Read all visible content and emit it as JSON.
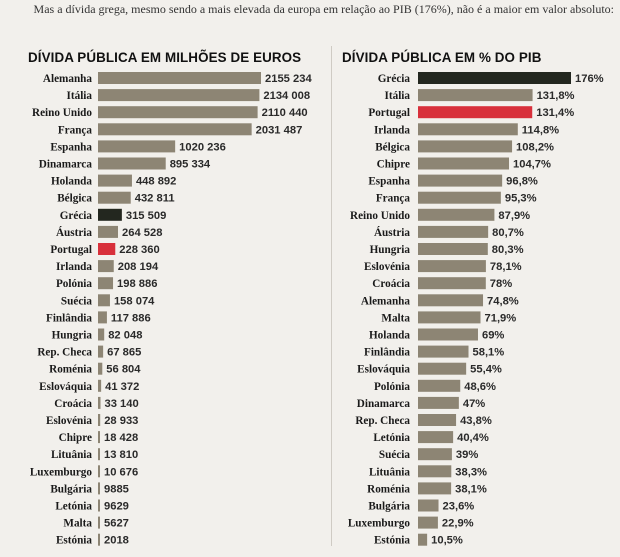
{
  "caption": "Mas a dívida grega, mesmo sendo a mais elevada da europa em relação ao PIB (176%), não é a maior em valor absoluto:",
  "colors": {
    "bar": "#8d8574",
    "greece": "#23271f",
    "portugal": "#d8303b",
    "highlight_text_greece": "#111111",
    "highlight_text_portugal": "#c0202b"
  },
  "chart_data": [
    {
      "type": "bar",
      "orientation": "horizontal",
      "title": "DÍVIDA PÚBLICA EM MILHÕES DE EUROS",
      "categories": [
        "Alemanha",
        "Itália",
        "Reino Unido",
        "França",
        "Espanha",
        "Dinamarca",
        "Holanda",
        "Bélgica",
        "Grécia",
        "Áustria",
        "Portugal",
        "Irlanda",
        "Polónia",
        "Suécia",
        "Finlândia",
        "Hungria",
        "Rep. Checa",
        "Roménia",
        "Eslováquia",
        "Croácia",
        "Eslovénia",
        "Chipre",
        "Lituânia",
        "Luxemburgo",
        "Bulgária",
        "Letónia",
        "Malta",
        "Estónia"
      ],
      "values": [
        2155234,
        2134008,
        2110440,
        2031487,
        1020236,
        895334,
        448892,
        432811,
        315509,
        264528,
        228360,
        208194,
        198886,
        158074,
        117886,
        82048,
        67865,
        56804,
        41372,
        33140,
        28933,
        18428,
        13810,
        10676,
        9885,
        9629,
        5627,
        2018
      ],
      "labels": [
        "2155 234",
        "2134 008",
        "2110 440",
        "2031 487",
        "1020 236",
        "895 334",
        "448 892",
        "432 811",
        "315 509",
        "264 528",
        "228 360",
        "208 194",
        "198 886",
        "158 074",
        "117 886",
        "82 048",
        "67 865",
        "56 804",
        "41 372",
        "33 140",
        "28 933",
        "18 428",
        "13 810",
        "10 676",
        "9885",
        "9629",
        "5627",
        "2018"
      ],
      "highlights": {
        "Grécia": "greece",
        "Portugal": "portugal"
      },
      "xlim": [
        0,
        2155234
      ]
    },
    {
      "type": "bar",
      "orientation": "horizontal",
      "title": "DÍVIDA PÚBLICA EM % DO PIB",
      "categories": [
        "Grécia",
        "Itália",
        "Portugal",
        "Irlanda",
        "Bélgica",
        "Chipre",
        "Espanha",
        "França",
        "Reino Unido",
        "Áustria",
        "Hungria",
        "Eslovénia",
        "Croácia",
        "Alemanha",
        "Malta",
        "Holanda",
        "Finlândia",
        "Eslováquia",
        "Polónia",
        "Dinamarca",
        "Rep. Checa",
        "Letónia",
        "Suécia",
        "Lituânia",
        "Roménia",
        "Bulgária",
        "Luxemburgo",
        "Estónia"
      ],
      "values": [
        176,
        131.8,
        131.4,
        114.8,
        108.2,
        104.7,
        96.8,
        95.3,
        87.9,
        80.7,
        80.3,
        78.1,
        78,
        74.8,
        71.9,
        69,
        58.1,
        55.4,
        48.6,
        47,
        43.8,
        40.4,
        39,
        38.3,
        38.1,
        23.6,
        22.9,
        10.5
      ],
      "labels": [
        "176%",
        "131,8%",
        "131,4%",
        "114,8%",
        "108,2%",
        "104,7%",
        "96,8%",
        "95,3%",
        "87,9%",
        "80,7%",
        "80,3%",
        "78,1%",
        "78%",
        "74,8%",
        "71,9%",
        "69%",
        "58,1%",
        "55,4%",
        "48,6%",
        "47%",
        "43,8%",
        "40,4%",
        "39%",
        "38,3%",
        "38,1%",
        "23,6%",
        "22,9%",
        "10,5%"
      ],
      "highlights": {
        "Grécia": "greece",
        "Portugal": "portugal"
      },
      "xlim": [
        0,
        176
      ]
    }
  ]
}
